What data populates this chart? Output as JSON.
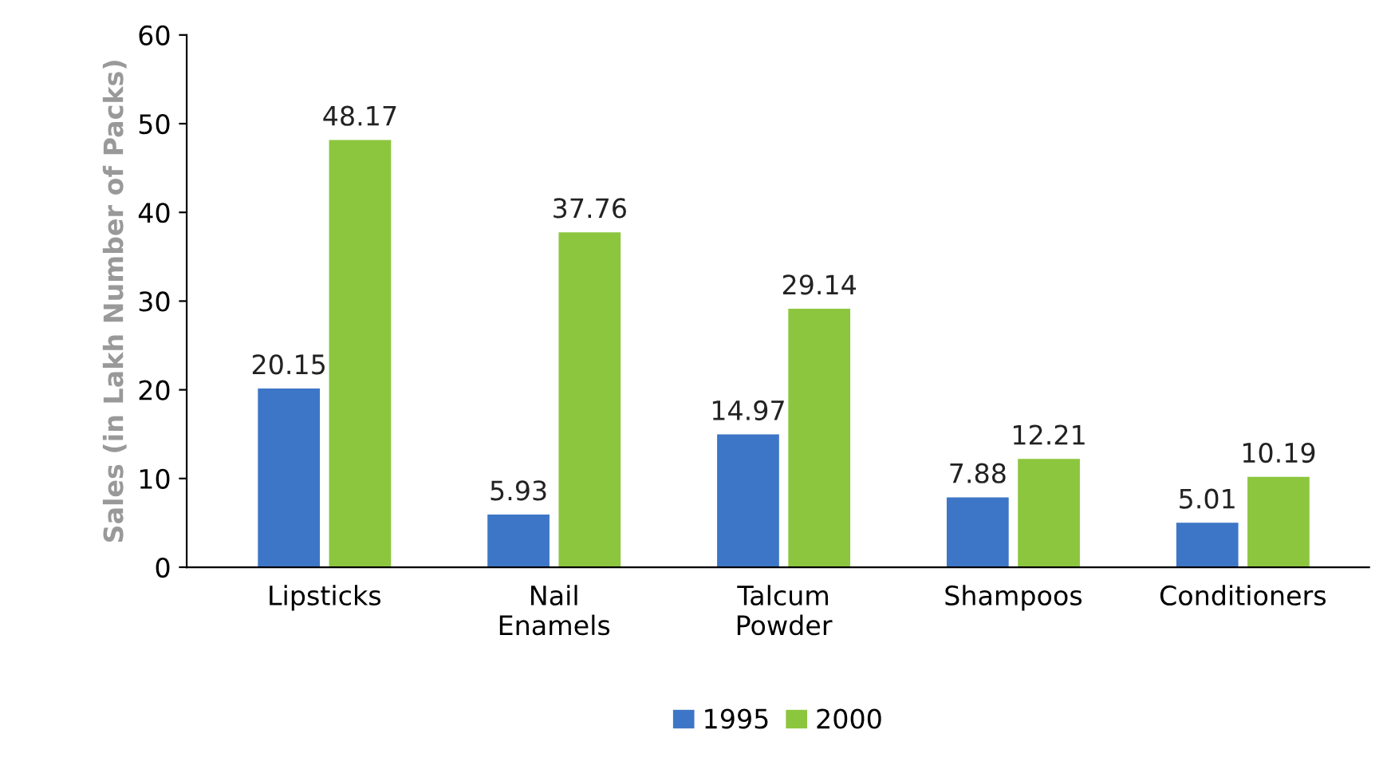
{
  "chart_data": {
    "type": "bar",
    "ylabel": "Sales (in Lakh Number of Packs)",
    "categories": [
      "Lipsticks",
      "Nail\nEnamels",
      "Talcum\nPowder",
      "Shampoos",
      "Conditioners"
    ],
    "series": [
      {
        "name": "1995",
        "color": "#3d76c6",
        "values": [
          20.15,
          5.93,
          14.97,
          7.88,
          5.01
        ]
      },
      {
        "name": "2000",
        "color": "#8cc63e",
        "values": [
          48.17,
          37.76,
          29.14,
          12.21,
          10.19
        ]
      }
    ],
    "ylim": [
      0,
      60
    ],
    "yticks": [
      0,
      10,
      20,
      30,
      40,
      50,
      60
    ],
    "grid": false,
    "legend": "bottom",
    "data_labels": true
  }
}
